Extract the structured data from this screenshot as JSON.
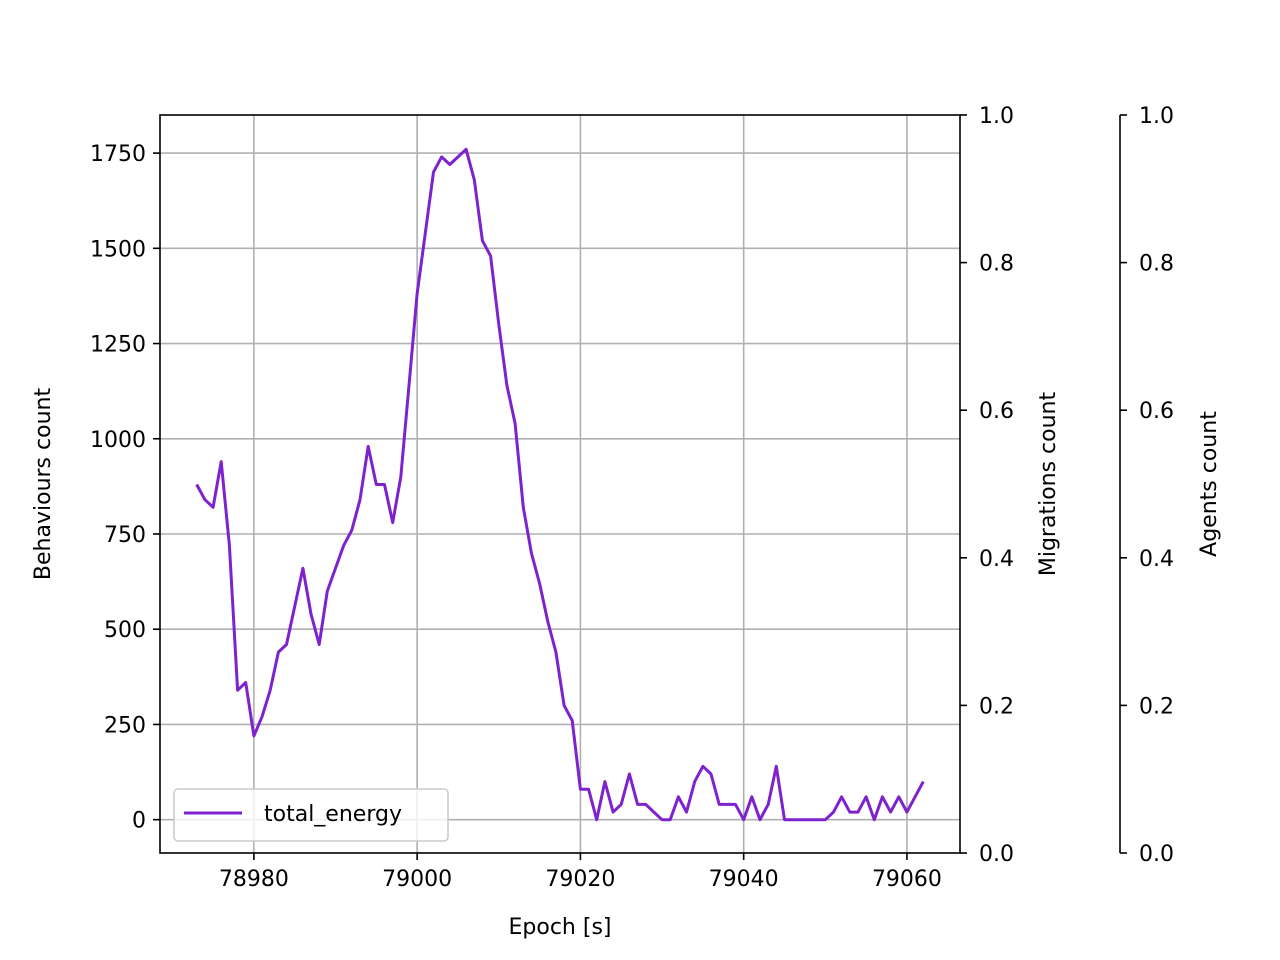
{
  "chart_data": {
    "type": "line",
    "xlabel": "Epoch [s]",
    "ylabel": "Behaviours count",
    "ylabel_right": "Migrations count",
    "ylabel_right2": "Agents count",
    "xlim": [
      78968.5,
      79066.5
    ],
    "ylim": [
      -87.5,
      1850
    ],
    "ylim_right": [
      0,
      1
    ],
    "ylim_right2": [
      0,
      1
    ],
    "xticks": [
      78980,
      79000,
      79020,
      79040,
      79060
    ],
    "yticks": [
      0,
      250,
      500,
      750,
      1000,
      1250,
      1500,
      1750
    ],
    "yticks_right": [
      "0.0",
      "0.2",
      "0.4",
      "0.6",
      "0.8",
      "1.0"
    ],
    "yticks_right2": [
      "0.0",
      "0.2",
      "0.4",
      "0.6",
      "0.8",
      "1.0"
    ],
    "grid": true,
    "legend_position": "lower-left",
    "series": [
      {
        "name": "total_energy",
        "color": "#7e22ce",
        "x": [
          78973,
          78974,
          78975,
          78976,
          78977,
          78978,
          78979,
          78980,
          78981,
          78982,
          78983,
          78984,
          78985,
          78986,
          78987,
          78988,
          78989,
          78990,
          78991,
          78992,
          78993,
          78994,
          78995,
          78996,
          78997,
          78998,
          78999,
          79000,
          79001,
          79002,
          79003,
          79004,
          79005,
          79006,
          79007,
          79008,
          79009,
          79010,
          79011,
          79012,
          79013,
          79014,
          79015,
          79016,
          79017,
          79018,
          79019,
          79020,
          79021,
          79022,
          79023,
          79024,
          79025,
          79026,
          79027,
          79028,
          79029,
          79030,
          79031,
          79032,
          79033,
          79034,
          79035,
          79036,
          79037,
          79038,
          79039,
          79040,
          79041,
          79042,
          79043,
          79044,
          79045,
          79046,
          79047,
          79048,
          79049,
          79050,
          79051,
          79052,
          79053,
          79054,
          79055,
          79056,
          79057,
          79058,
          79059,
          79060,
          79061,
          79062
        ],
        "y": [
          880,
          840,
          820,
          940,
          720,
          340,
          360,
          220,
          270,
          340,
          440,
          460,
          560,
          660,
          540,
          460,
          600,
          660,
          720,
          760,
          840,
          980,
          880,
          880,
          780,
          900,
          1140,
          1380,
          1540,
          1700,
          1740,
          1720,
          1740,
          1760,
          1680,
          1520,
          1480,
          1300,
          1140,
          1040,
          820,
          700,
          620,
          520,
          440,
          300,
          260,
          80,
          80,
          0,
          100,
          20,
          40,
          120,
          40,
          40,
          20,
          0,
          0,
          60,
          20,
          100,
          140,
          120,
          40,
          40,
          40,
          0,
          60,
          0,
          40,
          140,
          0,
          0,
          0,
          0,
          0,
          0,
          20,
          60,
          20,
          20,
          60,
          0,
          60,
          20,
          60,
          20,
          60,
          100
        ]
      }
    ]
  }
}
